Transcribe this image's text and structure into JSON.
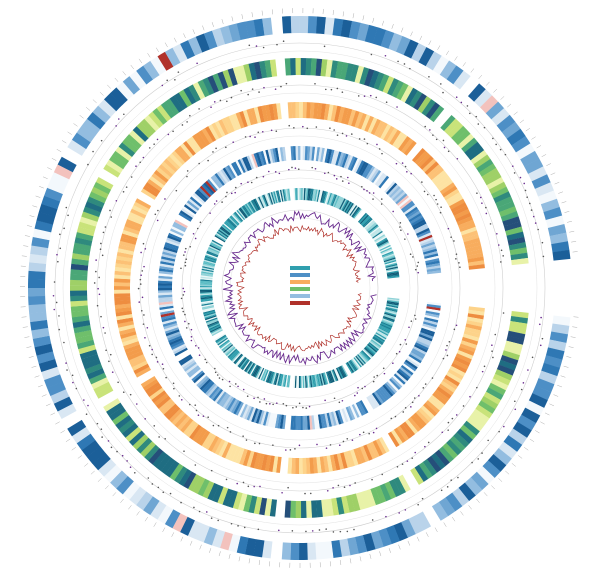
{
  "figure": {
    "kind": "circular heatmap",
    "gap_after_segments": [
      2,
      5,
      8
    ],
    "palette": {
      "blue": [
        "#f3f8fc",
        "#d9e7f3",
        "#b9d3ea",
        "#93bde0",
        "#6fa6d3",
        "#4d8fc6",
        "#2f78b4",
        "#1b5f99"
      ],
      "green": [
        "#e8f2a8",
        "#c9e37a",
        "#9fd067",
        "#6fbf6b",
        "#4aa777",
        "#2f8a7e",
        "#1f6d82",
        "#254f7a"
      ],
      "orange": [
        "#fde3a3",
        "#fdd38a",
        "#fcc176",
        "#f8ad5e",
        "#f39c4b",
        "#ee8d40"
      ],
      "teal": [
        "#eaf7f7",
        "#bfe6e8",
        "#8fd2d7",
        "#5bbcc4",
        "#2f9fae",
        "#1a7f94",
        "#0f5d78"
      ],
      "scatter_light": "#9a9ad0",
      "scatter_dark": "#6a2d8f",
      "red": "#b0312a",
      "pink": "#f3c2bd"
    }
  }
}
